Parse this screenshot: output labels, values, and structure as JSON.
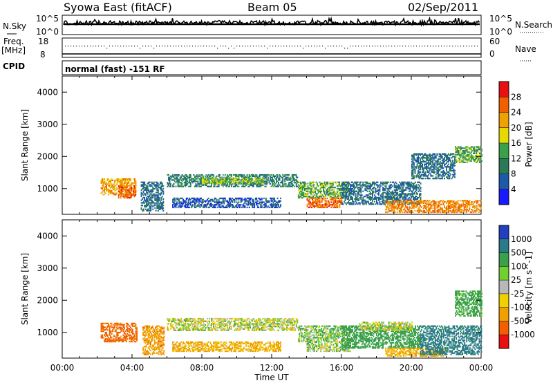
{
  "header": {
    "title": "Syowa East (fitACF)",
    "beam": "Beam 05",
    "date": "02/Sep/2011"
  },
  "status_panels": {
    "nsky_label": "N.Sky",
    "nsky_top_tick": "10^5",
    "nsky_bot_tick": "10^0",
    "nsearch_label": "N.Search",
    "nsearch_top_tick": "10^5",
    "nsearch_bot_tick": "10^0",
    "freq_label_1": "Freq.",
    "freq_label_2": "[MHz]",
    "freq_top_tick": "18",
    "freq_bot_tick": "8",
    "nave_label": "Nave",
    "nave_top_tick": "60",
    "nave_bot_tick": "0",
    "cpid_label": "CPID",
    "cpid_text": "normal (fast) -151 RF"
  },
  "chart_data": [
    {
      "type": "heatmap",
      "name": "Power",
      "ylabel": "Slant Range [km]",
      "xlabel": "Time UT",
      "xlim": [
        0,
        24
      ],
      "ylim": [
        200,
        4500
      ],
      "x_ticks": [
        "00:00",
        "04:00",
        "08:00",
        "12:00",
        "16:00",
        "20:00",
        "00:00"
      ],
      "y_ticks": [
        "1000",
        "2000",
        "3000",
        "4000"
      ],
      "colorbar": {
        "label": "Power [dB]",
        "ticks": [
          "4",
          "8",
          "12",
          "16",
          "20",
          "24",
          "28"
        ],
        "colors": [
          "#1a1aff",
          "#1e5aa8",
          "#2a7a5a",
          "#3aa04a",
          "#e6d800",
          "#f0a000",
          "#f06000",
          "#e81010"
        ]
      },
      "regions": [
        {
          "t0": 2.2,
          "t1": 4.2,
          "r0": 800,
          "r1": 1300,
          "v": 22
        },
        {
          "t0": 3.2,
          "t1": 4.2,
          "r0": 700,
          "r1": 1100,
          "v": 26
        },
        {
          "t0": 4.5,
          "t1": 5.8,
          "r0": 300,
          "r1": 1200,
          "v": 8
        },
        {
          "t0": 6.0,
          "t1": 13.5,
          "r0": 1050,
          "r1": 1450,
          "v": 10
        },
        {
          "t0": 8.0,
          "t1": 11.5,
          "r0": 1150,
          "r1": 1350,
          "v": 16
        },
        {
          "t0": 6.3,
          "t1": 12.5,
          "r0": 400,
          "r1": 700,
          "v": 6
        },
        {
          "t0": 13.5,
          "t1": 16.5,
          "r0": 700,
          "r1": 1200,
          "v": 14
        },
        {
          "t0": 14.0,
          "t1": 16.0,
          "r0": 400,
          "r1": 700,
          "v": 26
        },
        {
          "t0": 16.0,
          "t1": 20.5,
          "r0": 500,
          "r1": 1200,
          "v": 8
        },
        {
          "t0": 18.5,
          "t1": 24.0,
          "r0": 250,
          "r1": 650,
          "v": 24
        },
        {
          "t0": 20.0,
          "t1": 22.5,
          "r0": 1300,
          "r1": 2100,
          "v": 8
        },
        {
          "t0": 22.5,
          "t1": 24.0,
          "r0": 1800,
          "r1": 2300,
          "v": 14
        }
      ]
    },
    {
      "type": "heatmap",
      "name": "Velocity",
      "ylabel": "Slant Range [km]",
      "xlabel": "Time UT",
      "xlim": [
        0,
        24
      ],
      "ylim": [
        200,
        4500
      ],
      "x_ticks": [
        "00:00",
        "04:00",
        "08:00",
        "12:00",
        "16:00",
        "20:00",
        "00:00"
      ],
      "y_ticks": [
        "1000",
        "2000",
        "3000",
        "4000"
      ],
      "colorbar": {
        "label": "Velocity [m s^-1]",
        "ticks": [
          "1000",
          "500",
          "100",
          "25",
          "-25",
          "-100",
          "-500",
          "-1000"
        ],
        "colors": [
          "#2040c0",
          "#2a7a8a",
          "#3aa04a",
          "#70d030",
          "#b8b8b8",
          "#f0d000",
          "#f0a000",
          "#f06000",
          "#e81010"
        ]
      },
      "regions": [
        {
          "t0": 2.2,
          "t1": 4.3,
          "r0": 700,
          "r1": 1300,
          "v": -600
        },
        {
          "t0": 4.6,
          "t1": 5.8,
          "r0": 300,
          "r1": 1200,
          "v": -400
        },
        {
          "t0": 6.0,
          "t1": 13.5,
          "r0": 1050,
          "r1": 1450,
          "v": 0
        },
        {
          "t0": 6.3,
          "t1": 12.5,
          "r0": 400,
          "r1": 700,
          "v": -150
        },
        {
          "t0": 13.5,
          "t1": 16.5,
          "r0": 700,
          "r1": 1200,
          "v": 80
        },
        {
          "t0": 14.0,
          "t1": 16.5,
          "r0": 400,
          "r1": 700,
          "v": 40
        },
        {
          "t0": 16.0,
          "t1": 20.5,
          "r0": 500,
          "r1": 1200,
          "v": 300
        },
        {
          "t0": 17.0,
          "t1": 20.0,
          "r0": 1050,
          "r1": 1300,
          "v": 0
        },
        {
          "t0": 18.5,
          "t1": 22.0,
          "r0": 250,
          "r1": 500,
          "v": -150
        },
        {
          "t0": 20.5,
          "t1": 24.0,
          "r0": 300,
          "r1": 1200,
          "v": 600
        },
        {
          "t0": 22.5,
          "t1": 24.0,
          "r0": 1500,
          "r1": 2300,
          "v": 200
        }
      ]
    }
  ]
}
